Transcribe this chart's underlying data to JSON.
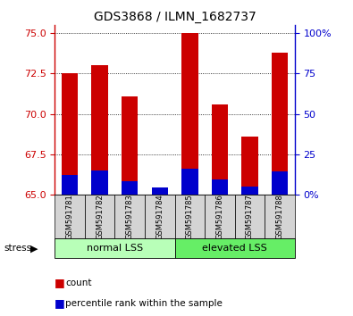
{
  "title": "GDS3868 / ILMN_1682737",
  "samples": [
    "GSM591781",
    "GSM591782",
    "GSM591783",
    "GSM591784",
    "GSM591785",
    "GSM591786",
    "GSM591787",
    "GSM591788"
  ],
  "red_values": [
    72.5,
    73.0,
    71.1,
    65.3,
    75.0,
    70.6,
    68.6,
    73.8
  ],
  "blue_values": [
    66.2,
    66.5,
    65.8,
    65.4,
    66.6,
    65.9,
    65.5,
    66.4
  ],
  "base": 65.0,
  "y_min": 65.0,
  "y_max": 75.5,
  "y_ticks": [
    65.0,
    67.5,
    70.0,
    72.5,
    75.0
  ],
  "right_y_ticks": [
    0,
    25,
    50,
    75,
    100
  ],
  "groups": [
    {
      "label": "normal LSS",
      "start": 0,
      "end": 3,
      "color": "#b8ffb8"
    },
    {
      "label": "elevated LSS",
      "start": 4,
      "end": 7,
      "color": "#66ee66"
    }
  ],
  "stress_label": "stress",
  "legend_red": "count",
  "legend_blue": "percentile rank within the sample",
  "red_color": "#cc0000",
  "blue_color": "#0000cc",
  "bar_width": 0.55,
  "title_fontsize": 10,
  "tick_fontsize": 8,
  "sample_fontsize": 6
}
